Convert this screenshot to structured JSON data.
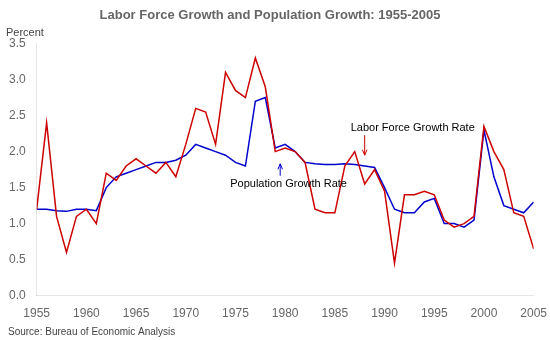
{
  "chart_data": {
    "type": "line",
    "title": "Labor Force Growth and Population Growth: 1955-2005",
    "ylabel": "Percent",
    "source": "Source: Bureau of Economic Analysis",
    "x": [
      1955,
      1956,
      1957,
      1958,
      1959,
      1960,
      1961,
      1962,
      1963,
      1964,
      1965,
      1966,
      1967,
      1968,
      1969,
      1970,
      1971,
      1972,
      1973,
      1974,
      1975,
      1976,
      1977,
      1978,
      1979,
      1980,
      1981,
      1982,
      1983,
      1984,
      1985,
      1986,
      1987,
      1988,
      1989,
      1990,
      1991,
      1992,
      1993,
      1994,
      1995,
      1996,
      1997,
      1998,
      1999,
      2000,
      2001,
      2002,
      2003,
      2004,
      2005
    ],
    "series": [
      {
        "name": "Labor Force Growth Rate",
        "color": "#cc0000",
        "values": [
          1.2,
          2.4,
          1.1,
          0.6,
          1.1,
          1.2,
          1.0,
          1.7,
          1.6,
          1.8,
          1.9,
          1.8,
          1.7,
          1.85,
          1.65,
          2.1,
          2.6,
          2.55,
          2.1,
          3.1,
          2.85,
          2.75,
          3.3,
          2.9,
          2.0,
          2.05,
          2.0,
          1.85,
          1.2,
          1.15,
          1.15,
          1.8,
          2.0,
          1.55,
          1.75,
          1.45,
          0.45,
          1.4,
          1.4,
          1.45,
          1.4,
          1.05,
          0.95,
          1.0,
          1.1,
          2.35,
          2.0,
          1.75,
          1.15,
          1.1,
          0.65
        ]
      },
      {
        "name": "Population Growth Rate",
        "color": "#0000cc",
        "values": [
          1.2,
          1.2,
          1.18,
          1.17,
          1.2,
          1.2,
          1.18,
          1.5,
          1.65,
          1.7,
          1.75,
          1.8,
          1.85,
          1.85,
          1.88,
          1.95,
          2.1,
          2.05,
          2.0,
          1.95,
          1.85,
          1.8,
          2.7,
          2.75,
          2.05,
          2.1,
          2.0,
          1.85,
          1.83,
          1.82,
          1.82,
          1.83,
          1.82,
          1.8,
          1.78,
          1.5,
          1.2,
          1.15,
          1.15,
          1.3,
          1.35,
          1.0,
          1.0,
          0.95,
          1.05,
          2.3,
          1.65,
          1.25,
          1.2,
          1.15,
          1.3
        ]
      }
    ],
    "annotations": [
      {
        "text": "Labor Force Growth Rate",
        "x": 1988.0,
        "y": 1.95
      },
      {
        "text": "Population Growth Rate",
        "x": 1979.5,
        "y": 1.83
      }
    ],
    "xlim": [
      1955,
      2005
    ],
    "xticks": [
      1955,
      1960,
      1965,
      1970,
      1975,
      1980,
      1985,
      1990,
      1995,
      2000,
      2005
    ],
    "ylim": [
      0,
      3.5
    ],
    "yticks": [
      {
        "value": 0,
        "label": "0.0"
      },
      0.5,
      {
        "value": 1,
        "label": "1.0"
      },
      1.5,
      {
        "value": 2,
        "label": "2.0"
      },
      2.5,
      {
        "value": 3,
        "label": "3.0"
      },
      3.5
    ],
    "grid": false,
    "legend": "none"
  }
}
